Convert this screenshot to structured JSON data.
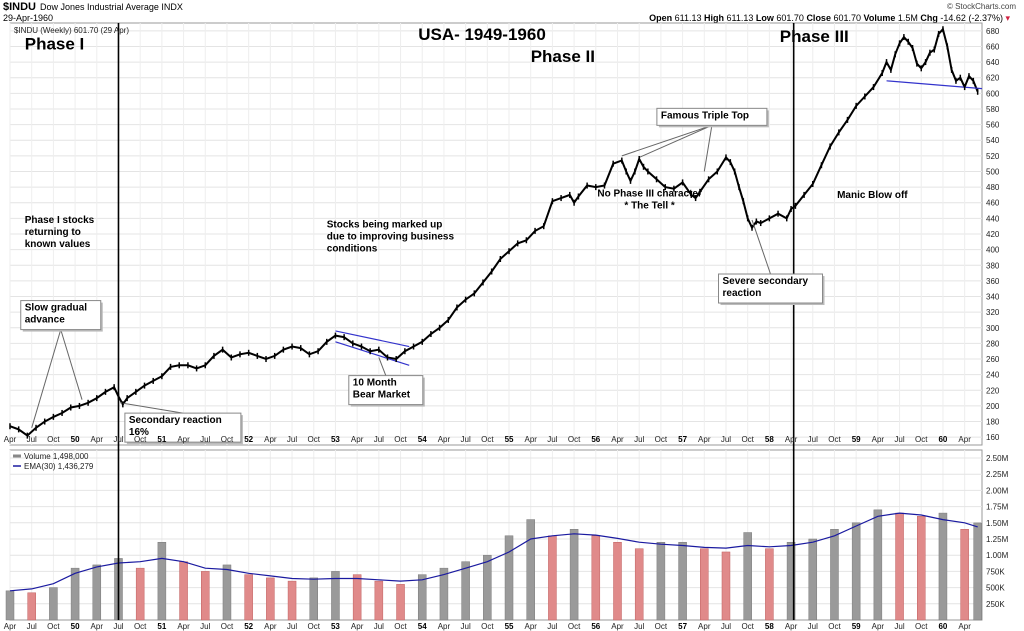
{
  "header": {
    "symbol": "$INDU",
    "name": "Dow Jones Industrial Average INDX",
    "date": "29-Apr-1960",
    "open_label": "Open",
    "open": "611.13",
    "high_label": "High",
    "high": "611.13",
    "low_label": "Low",
    "low": "601.70",
    "close_label": "Close",
    "close": "601.70",
    "volume_label": "Volume",
    "volume": "1.5M",
    "chg_label": "Chg",
    "chg": "-14.62 (-2.37%)",
    "credit": "© StockCharts.com"
  },
  "chart_data": [
    {
      "type": "line",
      "title": "USA- 1949-1960",
      "legend": "$INDU (Weekly) 601.70 (29 Apr)",
      "ylim": [
        150,
        690
      ],
      "y_ticks": [
        160,
        180,
        200,
        220,
        240,
        260,
        280,
        300,
        320,
        340,
        360,
        380,
        400,
        420,
        440,
        460,
        480,
        500,
        520,
        540,
        560,
        580,
        600,
        620,
        640,
        660,
        680
      ],
      "xlim": [
        1949.25,
        1960.45
      ],
      "x_tick_labels": [
        "Apr",
        "Jul",
        "Oct",
        "50",
        "Apr",
        "Jul",
        "Oct",
        "51",
        "Apr",
        "Jul",
        "Oct",
        "52",
        "Apr",
        "Jul",
        "Oct",
        "53",
        "Apr",
        "Jul",
        "Oct",
        "54",
        "Apr",
        "Jul",
        "Oct",
        "55",
        "Apr",
        "Jul",
        "Oct",
        "56",
        "Apr",
        "Jul",
        "Oct",
        "57",
        "Apr",
        "Jul",
        "Oct",
        "58",
        "Apr",
        "Jul",
        "Oct",
        "59",
        "Apr",
        "Jul",
        "Oct",
        "60",
        "Apr"
      ],
      "x_tick_pos": [
        1949.25,
        1949.5,
        1949.75,
        1950.0,
        1950.25,
        1950.5,
        1950.75,
        1951.0,
        1951.25,
        1951.5,
        1951.75,
        1952.0,
        1952.25,
        1952.5,
        1952.75,
        1953.0,
        1953.25,
        1953.5,
        1953.75,
        1954.0,
        1954.25,
        1954.5,
        1954.75,
        1955.0,
        1955.25,
        1955.5,
        1955.75,
        1956.0,
        1956.25,
        1956.5,
        1956.75,
        1957.0,
        1957.25,
        1957.5,
        1957.75,
        1958.0,
        1958.25,
        1958.5,
        1958.75,
        1959.0,
        1959.25,
        1959.5,
        1959.75,
        1960.0,
        1960.25
      ],
      "series": [
        {
          "values": [
            [
              1949.25,
              174
            ],
            [
              1949.35,
              170
            ],
            [
              1949.45,
              162
            ],
            [
              1949.55,
              172
            ],
            [
              1949.65,
              180
            ],
            [
              1949.75,
              186
            ],
            [
              1949.85,
              191
            ],
            [
              1949.95,
              198
            ],
            [
              1950.05,
              200
            ],
            [
              1950.15,
              204
            ],
            [
              1950.25,
              210
            ],
            [
              1950.35,
              218
            ],
            [
              1950.45,
              224
            ],
            [
              1950.5,
              212
            ],
            [
              1950.55,
              202
            ],
            [
              1950.6,
              210
            ],
            [
              1950.7,
              218
            ],
            [
              1950.8,
              226
            ],
            [
              1950.9,
              232
            ],
            [
              1951.0,
              238
            ],
            [
              1951.1,
              250
            ],
            [
              1951.2,
              252
            ],
            [
              1951.3,
              252
            ],
            [
              1951.4,
              248
            ],
            [
              1951.5,
              252
            ],
            [
              1951.6,
              264
            ],
            [
              1951.7,
              272
            ],
            [
              1951.8,
              262
            ],
            [
              1951.9,
              266
            ],
            [
              1952.0,
              268
            ],
            [
              1952.1,
              264
            ],
            [
              1952.2,
              260
            ],
            [
              1952.3,
              264
            ],
            [
              1952.4,
              272
            ],
            [
              1952.5,
              276
            ],
            [
              1952.6,
              274
            ],
            [
              1952.7,
              266
            ],
            [
              1952.8,
              270
            ],
            [
              1952.9,
              282
            ],
            [
              1953.0,
              290
            ],
            [
              1953.1,
              288
            ],
            [
              1953.2,
              280
            ],
            [
              1953.3,
              276
            ],
            [
              1953.4,
              270
            ],
            [
              1953.5,
              272
            ],
            [
              1953.6,
              262
            ],
            [
              1953.7,
              260
            ],
            [
              1953.8,
              270
            ],
            [
              1953.9,
              276
            ],
            [
              1954.0,
              282
            ],
            [
              1954.1,
              292
            ],
            [
              1954.2,
              300
            ],
            [
              1954.3,
              310
            ],
            [
              1954.4,
              326
            ],
            [
              1954.5,
              336
            ],
            [
              1954.6,
              344
            ],
            [
              1954.7,
              358
            ],
            [
              1954.8,
              372
            ],
            [
              1954.9,
              388
            ],
            [
              1955.0,
              398
            ],
            [
              1955.1,
              408
            ],
            [
              1955.2,
              412
            ],
            [
              1955.3,
              424
            ],
            [
              1955.4,
              430
            ],
            [
              1955.5,
              462
            ],
            [
              1955.6,
              466
            ],
            [
              1955.7,
              470
            ],
            [
              1955.75,
              460
            ],
            [
              1955.8,
              468
            ],
            [
              1955.9,
              482
            ],
            [
              1956.0,
              480
            ],
            [
              1956.1,
              482
            ],
            [
              1956.2,
              510
            ],
            [
              1956.3,
              514
            ],
            [
              1956.35,
              500
            ],
            [
              1956.4,
              488
            ],
            [
              1956.45,
              500
            ],
            [
              1956.5,
              516
            ],
            [
              1956.55,
              506
            ],
            [
              1956.6,
              500
            ],
            [
              1956.7,
              490
            ],
            [
              1956.8,
              480
            ],
            [
              1956.9,
              478
            ],
            [
              1957.0,
              486
            ],
            [
              1957.1,
              470
            ],
            [
              1957.15,
              466
            ],
            [
              1957.2,
              474
            ],
            [
              1957.3,
              490
            ],
            [
              1957.4,
              500
            ],
            [
              1957.5,
              518
            ],
            [
              1957.55,
              512
            ],
            [
              1957.6,
              500
            ],
            [
              1957.65,
              480
            ],
            [
              1957.7,
              462
            ],
            [
              1957.75,
              440
            ],
            [
              1957.8,
              428
            ],
            [
              1957.85,
              436
            ],
            [
              1957.9,
              434
            ],
            [
              1958.0,
              440
            ],
            [
              1958.1,
              446
            ],
            [
              1958.2,
              440
            ],
            [
              1958.25,
              452
            ],
            [
              1958.3,
              456
            ],
            [
              1958.4,
              470
            ],
            [
              1958.5,
              484
            ],
            [
              1958.6,
              508
            ],
            [
              1958.7,
              532
            ],
            [
              1958.8,
              550
            ],
            [
              1958.9,
              566
            ],
            [
              1959.0,
              584
            ],
            [
              1959.1,
              596
            ],
            [
              1959.2,
              608
            ],
            [
              1959.3,
              626
            ],
            [
              1959.35,
              640
            ],
            [
              1959.4,
              630
            ],
            [
              1959.45,
              650
            ],
            [
              1959.5,
              664
            ],
            [
              1959.55,
              672
            ],
            [
              1959.6,
              666
            ],
            [
              1959.65,
              658
            ],
            [
              1959.7,
              638
            ],
            [
              1959.75,
              632
            ],
            [
              1959.8,
              640
            ],
            [
              1959.85,
              652
            ],
            [
              1959.9,
              656
            ],
            [
              1959.95,
              676
            ],
            [
              1960.0,
              682
            ],
            [
              1960.05,
              660
            ],
            [
              1960.1,
              630
            ],
            [
              1960.15,
              616
            ],
            [
              1960.2,
              620
            ],
            [
              1960.25,
              608
            ],
            [
              1960.3,
              622
            ],
            [
              1960.35,
              616
            ],
            [
              1960.4,
              602
            ]
          ]
        }
      ],
      "annotations": [
        {
          "lines": [
            "Phase I"
          ],
          "kind": "phase",
          "x": 1949.42,
          "y": 656
        },
        {
          "lines": [
            "Phase II"
          ],
          "kind": "phase",
          "x": 1955.25,
          "y": 640
        },
        {
          "lines": [
            "Phase III"
          ],
          "kind": "phase",
          "x": 1958.12,
          "y": 666
        },
        {
          "lines": [
            "Phase I stocks",
            "returning to",
            "known values"
          ],
          "kind": "text",
          "x": 1949.42,
          "y": 434
        },
        {
          "lines": [
            "Stocks being marked up",
            "due to improving business",
            "conditions"
          ],
          "kind": "text",
          "x": 1952.9,
          "y": 428
        },
        {
          "lines": [
            "No Phase III character",
            "* The Tell *"
          ],
          "kind": "text",
          "x": 1956.62,
          "y": 468,
          "anchor": "middle"
        },
        {
          "lines": [
            "Manic Blow off"
          ],
          "kind": "text",
          "x": 1958.78,
          "y": 466
        },
        {
          "lines": [
            "Slow gradual",
            "advance"
          ],
          "kind": "box",
          "x": 1949.42,
          "y": 322,
          "to": [
            [
              1949.5,
              172
            ],
            [
              1950.08,
              208
            ]
          ]
        },
        {
          "lines": [
            "Secondary reaction",
            "16%"
          ],
          "kind": "box",
          "x": 1950.62,
          "y": 178,
          "to": [
            [
              1950.52,
              204
            ]
          ]
        },
        {
          "lines": [
            "10 Month",
            "Bear Market"
          ],
          "kind": "box",
          "x": 1953.2,
          "y": 226,
          "to": [
            [
              1953.5,
              262
            ]
          ]
        },
        {
          "lines": [
            "Famous Triple Top"
          ],
          "kind": "box",
          "x": 1956.75,
          "y": 568,
          "to": [
            [
              1956.3,
              520
            ],
            [
              1956.5,
              518
            ],
            [
              1957.25,
              500
            ]
          ]
        },
        {
          "lines": [
            "Severe secondary",
            "reaction"
          ],
          "kind": "box",
          "x": 1957.46,
          "y": 356,
          "to": [
            [
              1957.8,
              438
            ]
          ]
        }
      ],
      "phase_lines": [
        1950.5,
        1958.28
      ],
      "trendlines": [
        {
          "from": [
            1953.0,
            296
          ],
          "to": [
            1953.85,
            276
          ]
        },
        {
          "from": [
            1953.0,
            282
          ],
          "to": [
            1953.85,
            252
          ]
        },
        {
          "from": [
            1959.35,
            616
          ],
          "to": [
            1960.45,
            606
          ]
        }
      ]
    },
    {
      "type": "bar",
      "title": "",
      "legend_volume": "Volume 1,498,000",
      "legend_ema": "EMA(30) 1,436,279",
      "ylim": [
        0,
        2500000
      ],
      "y_ticks": [
        250000,
        500000,
        750000,
        1000000,
        1250000,
        1500000,
        1750000,
        2000000,
        2250000,
        2500000
      ],
      "y_tick_labels": [
        "250K",
        "500K",
        "750K",
        "1.00M",
        "1.25M",
        "1.50M",
        "1.75M",
        "2.00M",
        "2.25M",
        "2.50M"
      ],
      "series": [
        {
          "name": "Volume",
          "x": [
            1949.25,
            1949.5,
            1949.75,
            1950.0,
            1950.25,
            1950.5,
            1950.75,
            1951.0,
            1951.25,
            1951.5,
            1951.75,
            1952.0,
            1952.25,
            1952.5,
            1952.75,
            1953.0,
            1953.25,
            1953.5,
            1953.75,
            1954.0,
            1954.25,
            1954.5,
            1954.75,
            1955.0,
            1955.25,
            1955.5,
            1955.75,
            1956.0,
            1956.25,
            1956.5,
            1956.75,
            1957.0,
            1957.25,
            1957.5,
            1957.75,
            1958.0,
            1958.25,
            1958.5,
            1958.75,
            1959.0,
            1959.25,
            1959.5,
            1959.75,
            1960.0,
            1960.25,
            1960.4
          ],
          "values": [
            450000,
            420000,
            500000,
            800000,
            850000,
            950000,
            800000,
            1200000,
            900000,
            750000,
            850000,
            700000,
            650000,
            600000,
            650000,
            750000,
            700000,
            600000,
            550000,
            700000,
            800000,
            900000,
            1000000,
            1300000,
            1550000,
            1300000,
            1400000,
            1300000,
            1200000,
            1100000,
            1200000,
            1200000,
            1100000,
            1050000,
            1350000,
            1100000,
            1200000,
            1250000,
            1400000,
            1500000,
            1700000,
            1650000,
            1600000,
            1650000,
            1400000,
            1498000
          ]
        },
        {
          "name": "EMA(30)",
          "values": [
            450000,
            480000,
            560000,
            720000,
            820000,
            880000,
            900000,
            950000,
            900000,
            800000,
            780000,
            720000,
            680000,
            640000,
            630000,
            640000,
            640000,
            620000,
            600000,
            620000,
            700000,
            800000,
            900000,
            1050000,
            1250000,
            1300000,
            1330000,
            1310000,
            1260000,
            1200000,
            1170000,
            1150000,
            1120000,
            1110000,
            1150000,
            1130000,
            1150000,
            1200000,
            1300000,
            1450000,
            1600000,
            1650000,
            1620000,
            1550000,
            1500000,
            1436279
          ]
        }
      ]
    }
  ]
}
